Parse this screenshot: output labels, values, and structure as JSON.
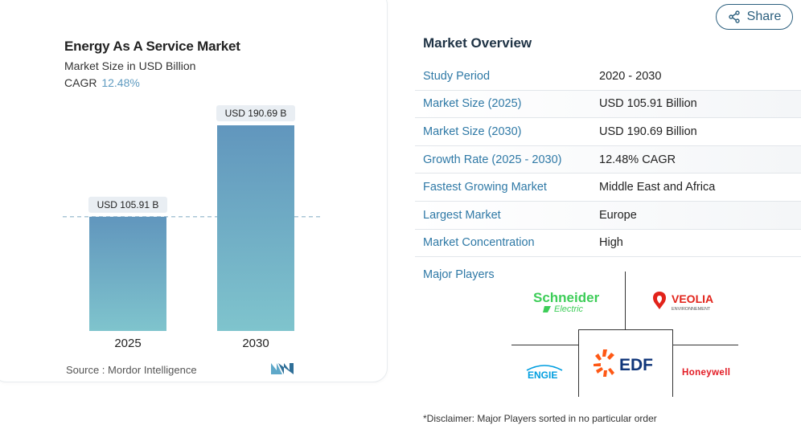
{
  "chart_card": {
    "title": "Energy As A Service Market",
    "subtitle": "Market Size in USD Billion",
    "cagr_label": "CAGR",
    "cagr_value": "12.48%",
    "source": "Source :  Mordor Intelligence"
  },
  "chart_data": {
    "type": "bar",
    "title": "Energy As A Service Market",
    "subtitle": "Market Size in USD Billion",
    "categories": [
      "2025",
      "2030"
    ],
    "values": [
      105.91,
      190.69
    ],
    "data_labels": [
      "USD 105.91 B",
      "USD 190.69 B"
    ],
    "ylim": [
      0,
      190.69
    ],
    "reference_line": 105.91,
    "grid": false,
    "colors": {
      "bar_top": "#6196bd",
      "bar_bottom": "#7fc4cd",
      "label_bg": "#e9eef3",
      "dash": "#8fb3c9"
    }
  },
  "share": {
    "label": "Share",
    "icon": "share-icon"
  },
  "overview": {
    "title": "Market Overview",
    "rows": [
      {
        "key": "Study Period",
        "value": "2020 - 2030"
      },
      {
        "key": "Market Size (2025)",
        "value": "USD 105.91 Billion"
      },
      {
        "key": "Market Size (2030)",
        "value": "USD 190.69 Billion"
      },
      {
        "key": "Growth Rate (2025 - 2030)",
        "value": "12.48% CAGR"
      },
      {
        "key": "Fastest Growing Market",
        "value": "Middle East and Africa"
      },
      {
        "key": "Largest Market",
        "value": "Europe"
      },
      {
        "key": "Market Concentration",
        "value": "High"
      }
    ]
  },
  "players": {
    "label": "Major Players",
    "logos": [
      "Schneider Electric",
      "VEOLIA ENVIRONNEMENT",
      "ENGIE",
      "EDF",
      "Honeywell"
    ]
  },
  "disclaimer": "*Disclaimer: Major Players sorted in no particular order",
  "colors": {
    "accent": "#2f79a6",
    "cagr": "#5f9bc0",
    "heading": "#1f3345"
  }
}
